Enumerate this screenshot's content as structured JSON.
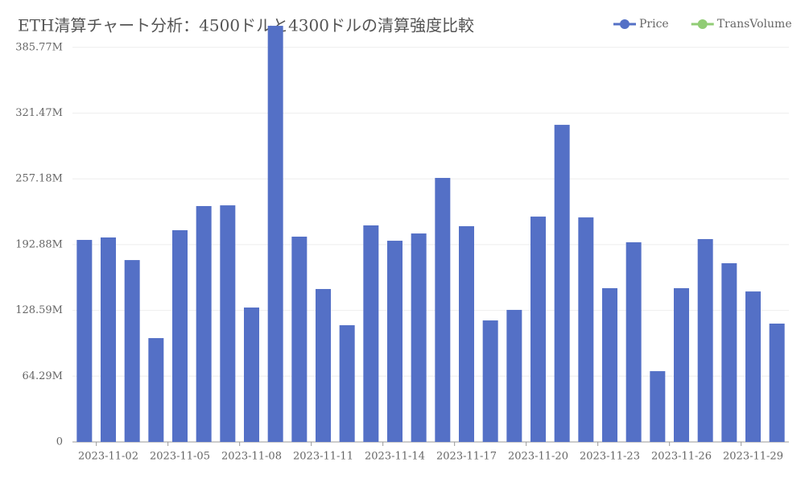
{
  "chart_data": {
    "type": "bar",
    "title": "ETH清算チャート分析：4500ドルと4300ドルの清算強度比較",
    "categories": [
      null,
      "2023-11-02",
      null,
      null,
      "2023-11-05",
      null,
      null,
      "2023-11-08",
      null,
      null,
      "2023-11-11",
      null,
      null,
      "2023-11-14",
      null,
      null,
      "2023-11-17",
      null,
      null,
      "2023-11-20",
      null,
      null,
      "2023-11-23",
      null,
      null,
      "2023-11-26",
      null,
      null,
      "2023-11-29",
      null
    ],
    "series": [
      {
        "name": "Price",
        "color": "#5470c6",
        "values": [
          197.5,
          199.9,
          177.8,
          101.5,
          207.0,
          230.6,
          231.3,
          131.4,
          406.8,
          200.7,
          149.5,
          114.1,
          211.7,
          196.7,
          203.8,
          258.1,
          210.9,
          118.8,
          129.1,
          220.3,
          310.0,
          219.5,
          150.3,
          195.2,
          69.2,
          150.3,
          198.3,
          174.7,
          147.1,
          115.7
        ]
      },
      {
        "name": "TransVolume",
        "color": "#91cc75",
        "values": [
          null,
          null,
          null,
          null,
          null,
          null,
          null,
          null,
          null,
          null,
          null,
          null,
          null,
          null,
          null,
          null,
          null,
          null,
          null,
          null,
          null,
          null,
          null,
          null,
          null,
          null,
          null,
          null,
          null,
          null
        ]
      }
    ],
    "ylim": [
      0,
      410
    ],
    "yticks": [
      0,
      {
        "value": 64.29,
        "label": "64.29M"
      },
      {
        "value": 128.59,
        "label": "128.59M"
      },
      {
        "value": 192.88,
        "label": "192.88M"
      },
      {
        "value": 257.18,
        "label": "257.18M"
      },
      {
        "value": 321.47,
        "label": "321.47M"
      },
      {
        "value": 385.77,
        "label": "385.77M"
      }
    ],
    "grid": true,
    "legend": "top-right"
  }
}
